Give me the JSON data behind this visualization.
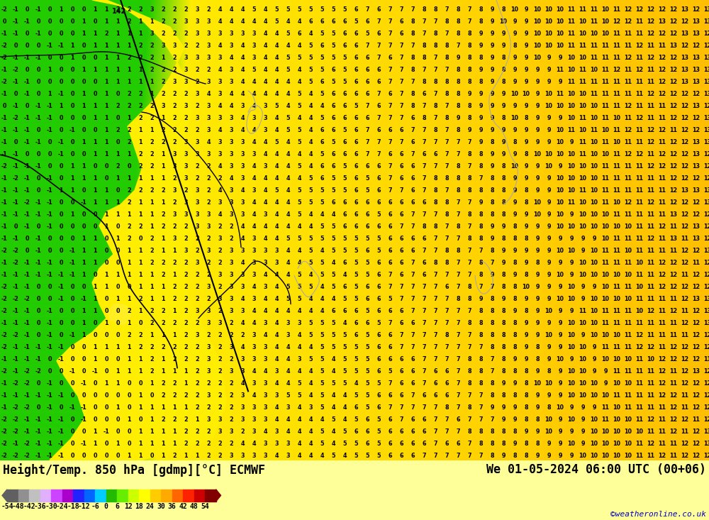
{
  "title_left": "Height/Temp. 850 hPa [gdmp][°C] ECMWF",
  "title_right": "We 01-05-2024 06:00 UTC (00+06)",
  "credit": "©weatheronline.co.uk",
  "colorbar_values": [
    -54,
    -48,
    -42,
    -36,
    -30,
    -24,
    -18,
    -12,
    -6,
    0,
    6,
    12,
    18,
    24,
    30,
    36,
    42,
    48,
    54
  ],
  "colorbar_colors": [
    "#606060",
    "#909090",
    "#c0c0c0",
    "#e0b0ff",
    "#cc44ff",
    "#aa00cc",
    "#2222ff",
    "#0066ff",
    "#00ccff",
    "#22bb00",
    "#66ee00",
    "#ccff00",
    "#ffff00",
    "#ffcc00",
    "#ffaa00",
    "#ff6600",
    "#ff2200",
    "#cc0000",
    "#800000"
  ],
  "map_bg_yellow": "#ffee00",
  "map_bg_green": "#22cc00",
  "map_bg_orange": "#ffbb00",
  "figure_bg": "#ffff99",
  "text_color": "#000000",
  "title_fontsize": 12,
  "credit_fontsize": 8,
  "colorbar_label_fontsize": 7,
  "fig_width": 10.0,
  "fig_height": 7.33,
  "contour_color": "#888888",
  "black_contour_color": "#000000"
}
